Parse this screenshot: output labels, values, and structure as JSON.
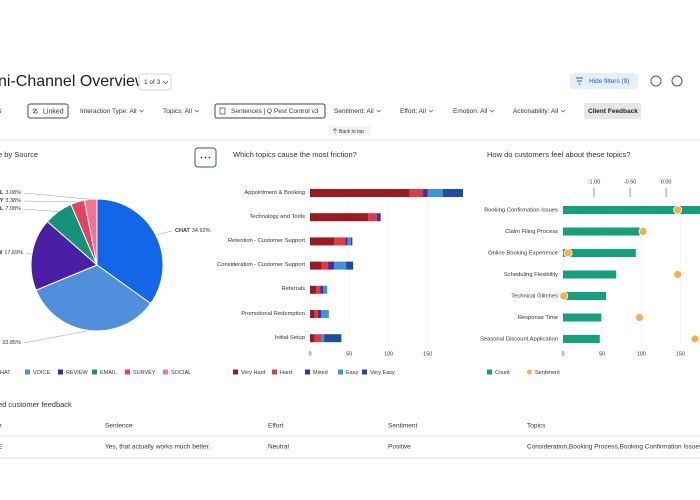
{
  "header": {
    "title": "ni-Channel Overview",
    "page_selector": "1 of 3",
    "hide_filters": "Hide filters (9)"
  },
  "filters": {
    "first": "s",
    "linked": "Linked",
    "items": [
      "Interaction Type: All",
      "Topics: All"
    ],
    "sentences": "Sentences | Q Pest Control v3",
    "items2": [
      "Sentiment: All",
      "Effort: All",
      "Emotion: All",
      "Actionability: All"
    ],
    "client_feedback": "Client Feedback",
    "back_to_top": "Back to top"
  },
  "chart_data": [
    {
      "type": "pie",
      "title": "e by Source",
      "categories": [
        "CHAT",
        "VOICE",
        "REVIEW",
        "EMAIL",
        "SURVEY",
        "SOCIAL"
      ],
      "values": [
        34.92,
        33.85,
        17.69,
        7.08,
        3.38,
        3.08
      ],
      "value_labels": [
        "34.92%",
        "33.85%",
        "17.69%",
        "7.08%",
        "3.38%",
        "3.08%"
      ],
      "colors": [
        "#1366e8",
        "#4f8fdb",
        "#4a1fa6",
        "#14937a",
        "#e8405f",
        "#f07595"
      ],
      "legend": "bottom"
    },
    {
      "type": "stacked_bar",
      "title": "Which topics cause the most friction?",
      "categories": [
        "Appointment & Booking",
        "Technology and Tools",
        "Retention - Customer Support",
        "Consideration - Customer Support",
        "Referrals",
        "Promotional Redemption",
        "Initial Setup"
      ],
      "series": [
        {
          "name": "Very Hard",
          "color": "#9a1a1f",
          "values": [
            127,
            74,
            31,
            15,
            8,
            6,
            6
          ]
        },
        {
          "name": "Hard",
          "color": "#e2383f",
          "values": [
            17,
            11,
            14,
            8,
            5,
            4,
            8
          ]
        },
        {
          "name": "Mixed",
          "color": "#4f2a9c",
          "values": [
            6,
            5,
            3,
            8,
            4,
            4,
            null
          ]
        },
        {
          "name": "Easy",
          "color": "#3b93dc",
          "values": [
            19,
            null,
            4,
            15,
            5,
            10,
            4
          ]
        },
        {
          "name": "Very Easy",
          "color": "#1c4f9e",
          "values": [
            26,
            null,
            2,
            9,
            null,
            null,
            22
          ]
        }
      ],
      "xlim": [
        0,
        200
      ],
      "xticks": [
        0,
        50,
        100,
        150
      ],
      "grid": true,
      "legend": "bottom"
    },
    {
      "type": "bar_scatter",
      "title": "How do customers feel about these topics?",
      "categories": [
        "Booking Confirmation Issues",
        "Claim Filing Process",
        "Online Booking Experience",
        "Scheduling Flexibility",
        "Technical Glitches",
        "Response Time",
        "Seasonal Discount Application"
      ],
      "series": [
        {
          "name": "Count",
          "color": "#14a07a",
          "values": [
            185,
            98,
            93,
            68,
            55,
            49,
            47
          ]
        },
        {
          "name": "Sentiment",
          "color": "#f3b04c",
          "axis": "x2",
          "values": [
            0.16,
            -0.32,
            -1.36,
            0.16,
            -1.42,
            -0.37,
            0.4
          ]
        }
      ],
      "xlim": [
        0,
        175
      ],
      "xticks": [
        0,
        50,
        100,
        150
      ],
      "x2lim": [
        -1.43,
        0.47
      ],
      "x2ticks": [
        {
          "value": -1,
          "label": "-1.00"
        },
        {
          "value": -0.5,
          "label": "-0.50"
        },
        {
          "value": 0,
          "label": "0.00"
        }
      ],
      "grid": true,
      "legend": "bottom"
    }
  ],
  "table": {
    "title": "ed customer feedback",
    "columns": [
      "e",
      "Sentence",
      "Effort",
      "Sentiment",
      "Topics"
    ],
    "rows": [
      [
        "E",
        "Yes, that actually works much better.",
        "Neutral",
        "Positive",
        "Consideration,Booking Process,Booking Confirmation Issues"
      ]
    ]
  }
}
